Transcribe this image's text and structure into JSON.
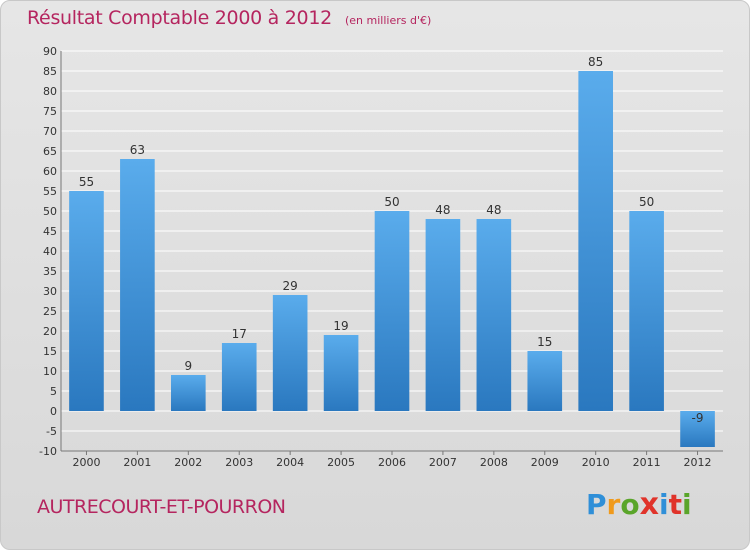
{
  "header": {
    "title": "Résultat Comptable 2000 à 2012",
    "subtitle": "(en milliers d'€)"
  },
  "footer": {
    "place": "AUTRECOURT-ET-POURRON",
    "logo_text": "Proxiti"
  },
  "colors": {
    "title": "#b5255f",
    "bar_top": "#5aacec",
    "bar_bottom": "#2a78bf",
    "grid": "#ffffff"
  },
  "chart_data": {
    "type": "bar",
    "categories": [
      "2000",
      "2001",
      "2002",
      "2003",
      "2004",
      "2005",
      "2006",
      "2007",
      "2008",
      "2009",
      "2010",
      "2011",
      "2012"
    ],
    "values": [
      55,
      63,
      9,
      17,
      29,
      19,
      50,
      48,
      48,
      15,
      85,
      50,
      -9
    ],
    "data_labels": [
      "55",
      "63",
      "9",
      "17",
      "29",
      "19",
      "50",
      "48",
      "48",
      "15",
      "85",
      "50",
      "-9"
    ],
    "title": "Résultat Comptable 2000 à 2012",
    "subtitle": "(en milliers d'€)",
    "ylim": [
      -10,
      90
    ],
    "yticks": [
      -10,
      -5,
      0,
      5,
      10,
      15,
      20,
      25,
      30,
      35,
      40,
      45,
      50,
      55,
      60,
      65,
      70,
      75,
      80,
      85,
      90
    ],
    "grid": true
  }
}
